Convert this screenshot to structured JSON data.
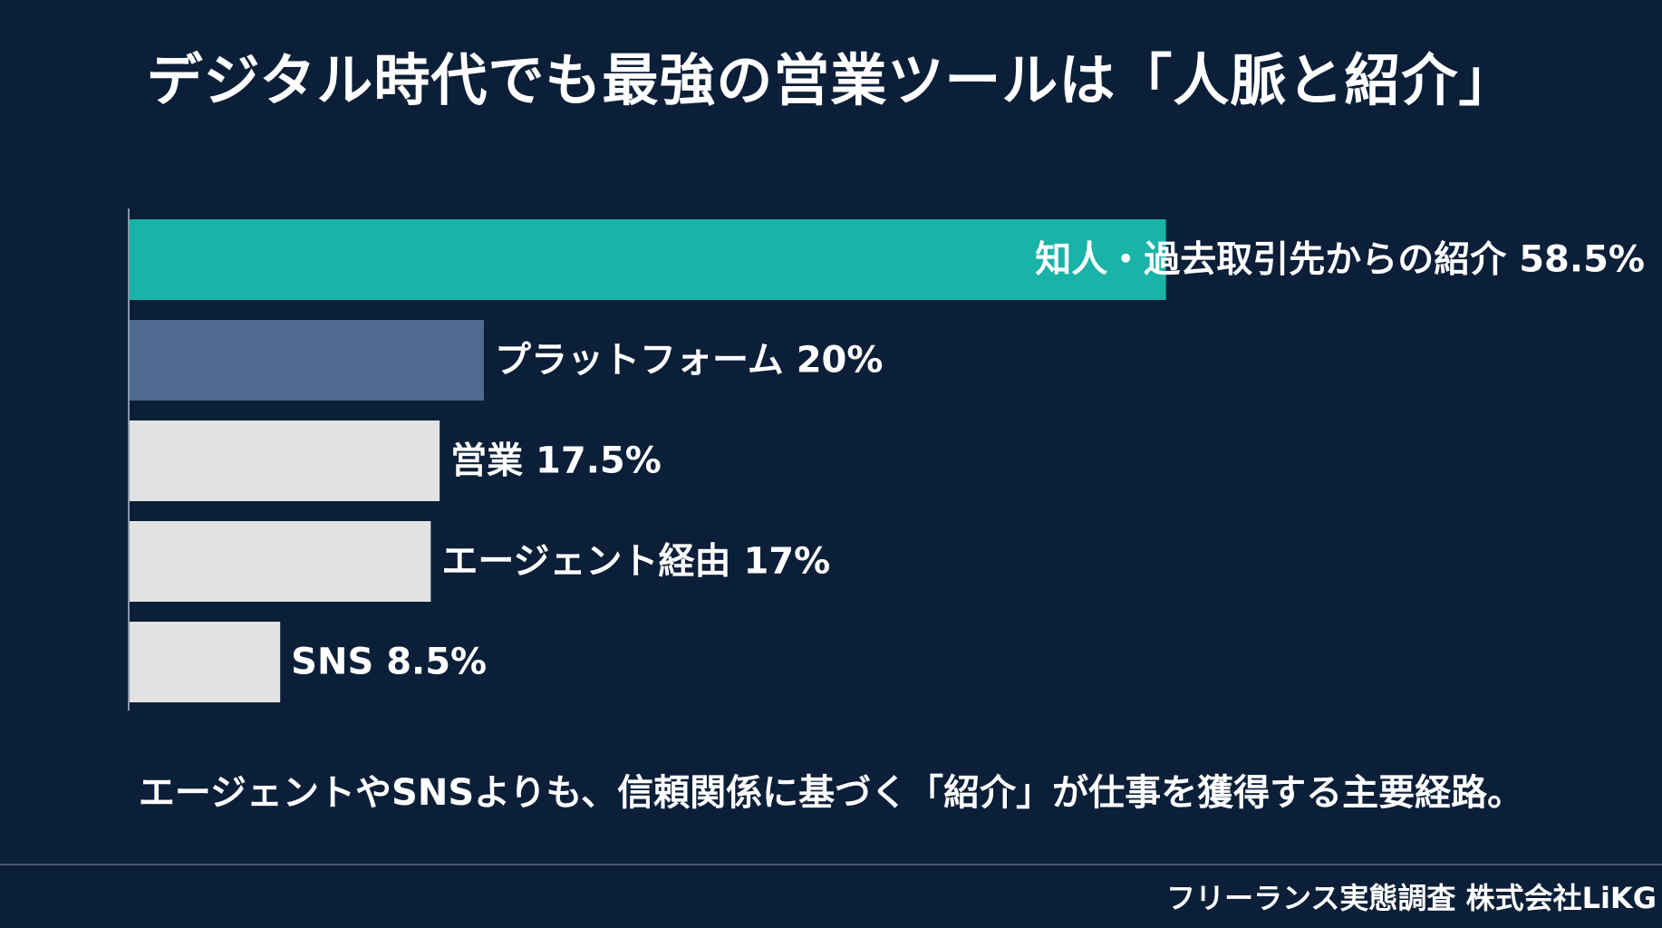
{
  "title": "デジタル時代でも最強の営業ツールは「人脈と紹介」",
  "caption": "エージェントやSNSよりも、信頼関係に基づく「紹介」が仕事を獲得する主要経路。",
  "source": "フリーランス実態調査  株式会社LiKG",
  "chart_data": {
    "type": "bar",
    "orientation": "horizontal",
    "title": "デジタル時代でも最強の営業ツールは「人脈と紹介」",
    "unit": "%",
    "xlabel": "",
    "ylabel": "",
    "xlim": [
      0,
      100
    ],
    "grid": false,
    "categories": [
      "知人・過去取引先からの紹介",
      "プラットフォーム",
      "営業",
      "エージェント経由",
      "SNS"
    ],
    "values": [
      58.5,
      20,
      17.5,
      17,
      8.5
    ],
    "labels": [
      "知人・過去取引先からの紹介 58.5%",
      "プラットフォーム 20%",
      "営業 17.5%",
      "エージェント経由 17%",
      "SNS 8.5%"
    ],
    "colors": [
      "#1ab3a8",
      "#4f6a8f",
      "#e2e2e2",
      "#e2e2e2",
      "#e2e2e2"
    ]
  }
}
